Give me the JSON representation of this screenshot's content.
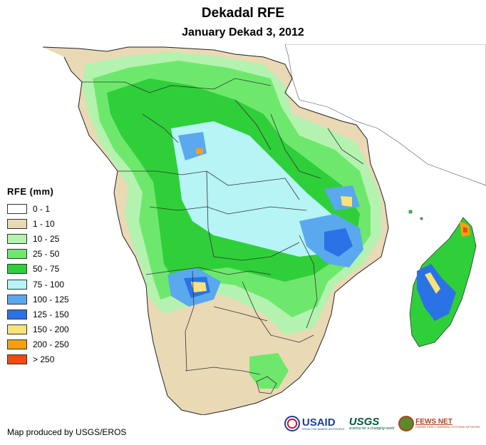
{
  "header": {
    "title": "Dekadal RFE",
    "subtitle": "January Dekad 3, 2012"
  },
  "legend": {
    "title": "RFE (mm)",
    "items": [
      {
        "label": "0 - 1",
        "color": "#ffffff"
      },
      {
        "label": "1 - 10",
        "color": "#ead9b5"
      },
      {
        "label": "10 - 25",
        "color": "#b4f2b0"
      },
      {
        "label": "25 - 50",
        "color": "#6ee86c"
      },
      {
        "label": "50 - 75",
        "color": "#2fcf3a"
      },
      {
        "label": "75 - 100",
        "color": "#b6f4f6"
      },
      {
        "label": "100 - 125",
        "color": "#5aa8ee"
      },
      {
        "label": "125 - 150",
        "color": "#2a72e6"
      },
      {
        "label": "150 - 200",
        "color": "#f8e27a"
      },
      {
        "label": "200 - 250",
        "color": "#f5a010"
      },
      {
        "label": "> 250",
        "color": "#f24a10"
      }
    ]
  },
  "footer": {
    "credit": "Map produced by USGS/EROS"
  },
  "logos": {
    "usaid": {
      "name": "USAID",
      "tagline": "FROM THE AMERICAN PEOPLE"
    },
    "usgs": {
      "name": "USGS",
      "tagline": "science for a changing world"
    },
    "fews": {
      "name": "FEWS NET",
      "tagline": "FAMINE EARLY WARNING SYSTEMS NETWORK"
    }
  }
}
